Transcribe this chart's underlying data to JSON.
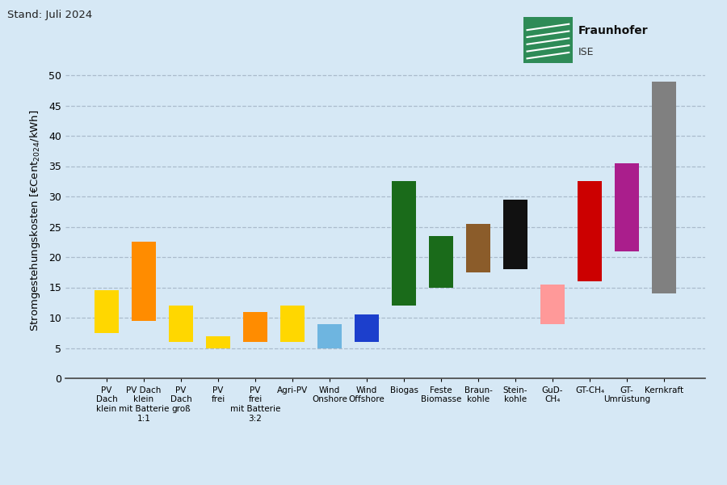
{
  "categories": [
    "PV\nDach\nklein",
    "PV Dach\nklein\nmit Batterie\n1:1",
    "PV\nDach\ngroß",
    "PV\nfrei",
    "PV\nfrei\nmit Batterie\n3:2",
    "Agri-PV",
    "Wind\nOnshore",
    "Wind\nOffshore",
    "Biogas",
    "Feste\nBiomasse",
    "Braun-\nkohle",
    "Stein-\nkohle",
    "GuD-\nCH₄",
    "GT-CH₄",
    "GT-\nUmrüstung",
    "Kernkraft"
  ],
  "bar_min": [
    7.5,
    9.5,
    6.0,
    5.0,
    6.0,
    6.0,
    5.0,
    6.0,
    12.0,
    15.0,
    17.5,
    18.0,
    9.0,
    16.0,
    21.0,
    14.0
  ],
  "bar_max": [
    14.5,
    22.5,
    12.0,
    7.0,
    11.0,
    12.0,
    9.0,
    10.5,
    32.5,
    23.5,
    25.5,
    29.5,
    15.5,
    32.5,
    35.5,
    49.0
  ],
  "colors": [
    "#FFD700",
    "#FF8C00",
    "#FFD700",
    "#FFD700",
    "#FF8C00",
    "#FFD700",
    "#6EB5E0",
    "#1C3FCC",
    "#1A6B1A",
    "#1A6B1A",
    "#8B5C2A",
    "#111111",
    "#FF9999",
    "#CC0000",
    "#AA1E8C",
    "#808080"
  ],
  "title": "Stand: Juli 2024",
  "ylabel": "éCent₂₀₂₄/kWh",
  "ylim": [
    0,
    52
  ],
  "yticks": [
    0,
    5,
    10,
    15,
    20,
    25,
    30,
    35,
    40,
    45,
    50
  ],
  "background_color": "#D6E8F5",
  "grid_color": "#AABBCC"
}
